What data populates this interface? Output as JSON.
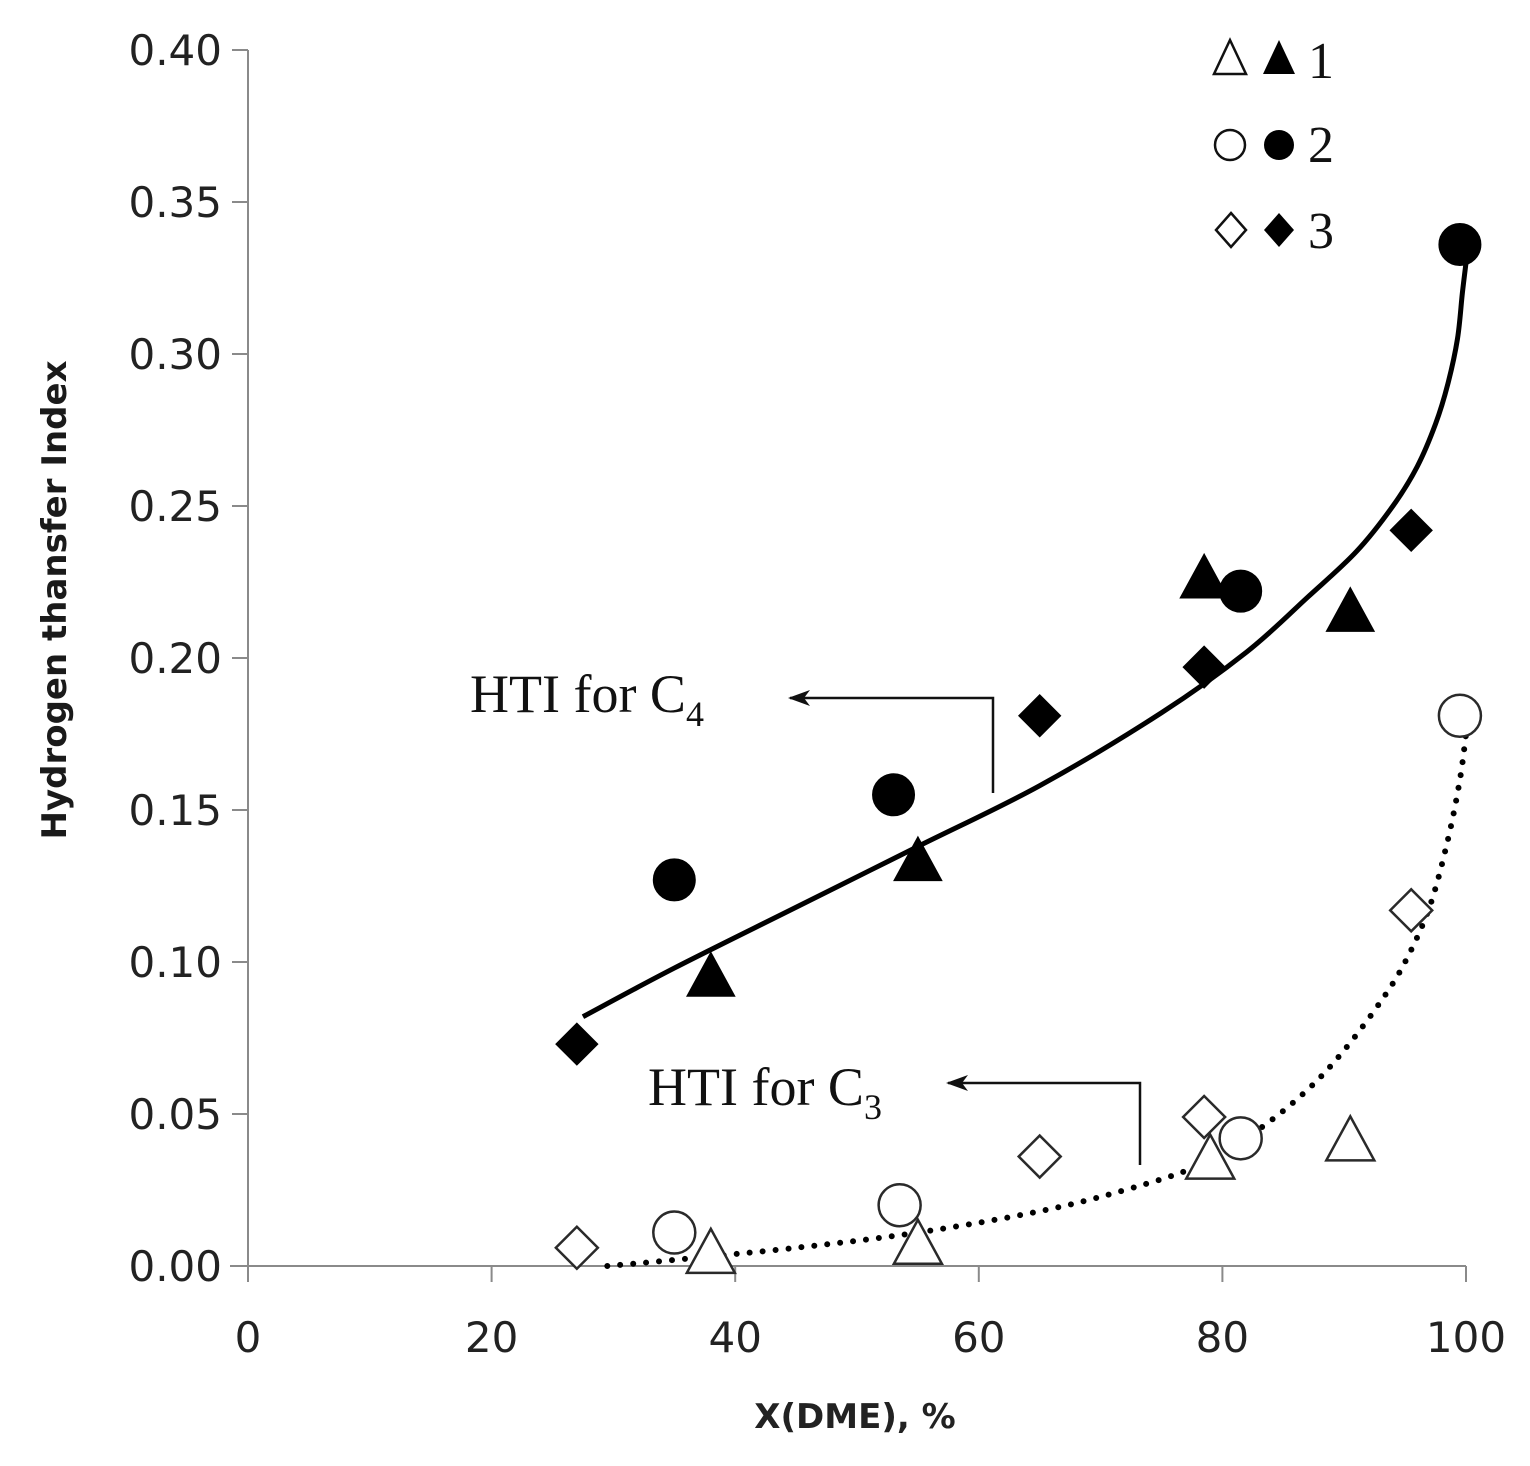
{
  "chart_data": {
    "type": "scatter",
    "title": "",
    "xlabel": "X(DME), %",
    "ylabel": "Hydrogen thansfer Index",
    "xlim": [
      0,
      100
    ],
    "ylim": [
      0,
      0.4
    ],
    "xticks": [
      0,
      20,
      40,
      60,
      80,
      100
    ],
    "xtick_labels": [
      "0",
      "20",
      "40",
      "60",
      "80",
      "100"
    ],
    "yticks": [
      0,
      0.05,
      0.1,
      0.15,
      0.2,
      0.25,
      0.3,
      0.35,
      0.4
    ],
    "ytick_labels": [
      "0.00",
      "0.05",
      "0.10",
      "0.15",
      "0.20",
      "0.25",
      "0.30",
      "0.35",
      "0.40"
    ],
    "legend": {
      "placement": "top-right",
      "entries": [
        {
          "label": "1",
          "open": "triangle-open",
          "filled": "triangle-filled"
        },
        {
          "label": "2",
          "open": "circle-open",
          "filled": "circle-filled"
        },
        {
          "label": "3",
          "open": "diamond-open",
          "filled": "diamond-filled"
        }
      ]
    },
    "series": [
      {
        "name": "1 (C4)",
        "marker": "triangle",
        "filled": true,
        "points": [
          [
            38,
            0.095
          ],
          [
            55,
            0.133
          ],
          [
            78.5,
            0.226
          ],
          [
            90.5,
            0.215
          ]
        ]
      },
      {
        "name": "2 (C4)",
        "marker": "circle",
        "filled": true,
        "points": [
          [
            35,
            0.127
          ],
          [
            53,
            0.155
          ],
          [
            81.5,
            0.222
          ],
          [
            99.5,
            0.336
          ]
        ]
      },
      {
        "name": "3 (C4)",
        "marker": "diamond",
        "filled": true,
        "points": [
          [
            27,
            0.073
          ],
          [
            65,
            0.181
          ],
          [
            78.5,
            0.197
          ],
          [
            95.5,
            0.242
          ]
        ]
      },
      {
        "name": "1 (C3)",
        "marker": "triangle",
        "filled": false,
        "points": [
          [
            38,
            0.004
          ],
          [
            55,
            0.007
          ],
          [
            79,
            0.035
          ],
          [
            90.5,
            0.041
          ]
        ]
      },
      {
        "name": "2 (C3)",
        "marker": "circle",
        "filled": false,
        "points": [
          [
            35,
            0.011
          ],
          [
            53.5,
            0.02
          ],
          [
            81.5,
            0.042
          ],
          [
            99.5,
            0.181
          ]
        ]
      },
      {
        "name": "3 (C3)",
        "marker": "diamond",
        "filled": false,
        "points": [
          [
            27,
            0.006
          ],
          [
            65,
            0.036
          ],
          [
            78.5,
            0.049
          ],
          [
            95.5,
            0.117
          ]
        ]
      }
    ],
    "trendlines": [
      {
        "name": "HTI for C4",
        "style": "solid",
        "points": [
          [
            27.5,
            0.082
          ],
          [
            35,
            0.098
          ],
          [
            45,
            0.118
          ],
          [
            55,
            0.138
          ],
          [
            65,
            0.158
          ],
          [
            75,
            0.182
          ],
          [
            82,
            0.202
          ],
          [
            87,
            0.22
          ],
          [
            91,
            0.235
          ],
          [
            94,
            0.25
          ],
          [
            96,
            0.263
          ],
          [
            97.5,
            0.277
          ],
          [
            98.5,
            0.29
          ],
          [
            99.3,
            0.305
          ],
          [
            99.7,
            0.32
          ],
          [
            100,
            0.33
          ]
        ]
      },
      {
        "name": "HTI for C3",
        "style": "dotted",
        "points": [
          [
            29.5,
            0.0
          ],
          [
            35,
            0.002
          ],
          [
            45,
            0.006
          ],
          [
            55,
            0.011
          ],
          [
            65,
            0.018
          ],
          [
            72,
            0.025
          ],
          [
            78,
            0.033
          ],
          [
            83,
            0.045
          ],
          [
            87,
            0.058
          ],
          [
            90,
            0.071
          ],
          [
            93,
            0.087
          ],
          [
            95,
            0.1
          ],
          [
            97,
            0.118
          ],
          [
            98.5,
            0.14
          ],
          [
            99.5,
            0.16
          ],
          [
            100,
            0.175
          ]
        ]
      }
    ],
    "annotations": [
      {
        "text": "HTI for C",
        "subscript": "4",
        "target": "C4 curve"
      },
      {
        "text": "HTI for C",
        "subscript": "3",
        "target": "C3 curve"
      }
    ]
  }
}
